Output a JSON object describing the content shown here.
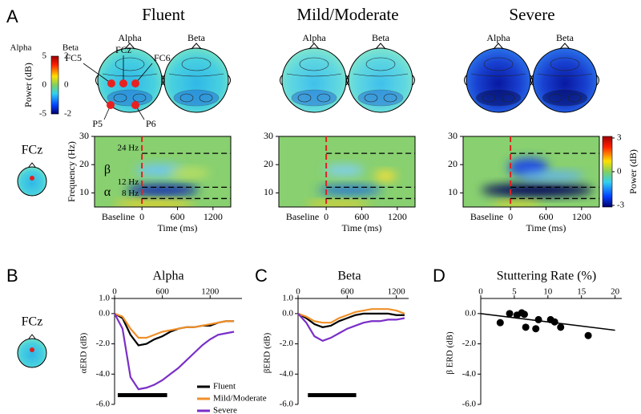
{
  "panel_a": {
    "label": "A",
    "groups": [
      {
        "title": "Fluent"
      },
      {
        "title": "Mild/Moderate"
      },
      {
        "title": "Severe"
      }
    ],
    "topo_titles": [
      "Alpha",
      "Beta"
    ],
    "electrodes": [
      "FC5",
      "FCz",
      "FC6",
      "P5",
      "P6"
    ],
    "topo_colorbar": {
      "titles": [
        "Alpha",
        "Beta"
      ],
      "label": "Power (dB)",
      "alpha_ticks": [
        5,
        0,
        -5
      ],
      "beta_ticks": [
        2,
        0,
        -2
      ]
    },
    "channel": "FCz",
    "spectrogram": {
      "ylabel": "Frequency (Hz)",
      "xlabel": "Time (ms)",
      "baseline_label": "Baseline",
      "ylim": [
        5,
        30
      ],
      "yticks": [
        10,
        20,
        30
      ],
      "xlim": [
        -800,
        1500
      ],
      "xticks": [
        0,
        600,
        1200
      ],
      "bands": [
        {
          "value": 24,
          "label": "24 Hz"
        },
        {
          "value": 12,
          "label": "12 Hz"
        },
        {
          "value": 8,
          "label": "8 Hz"
        }
      ],
      "band_names": [
        "β",
        "α"
      ]
    },
    "power_colorbar": {
      "label": "Power (dB)",
      "ticks": [
        3,
        0,
        -3
      ]
    }
  },
  "chart_data": [
    {
      "type": "line",
      "panel_label": "B",
      "title": "Alpha",
      "ylabel": "αERD (dB)",
      "legend": true,
      "x": [
        0,
        100,
        200,
        300,
        400,
        500,
        600,
        700,
        800,
        900,
        1000,
        1100,
        1200,
        1300,
        1400,
        1500
      ],
      "xlim": [
        0,
        1600
      ],
      "xticks": [
        0,
        600,
        1200
      ],
      "ylim": [
        -6,
        1
      ],
      "yticks": [
        {
          "value": 1,
          "label": "1.0"
        },
        {
          "value": 0,
          "label": "0.0"
        },
        {
          "value": -2,
          "label": "-2.0"
        },
        {
          "value": -4,
          "label": "-4.0"
        },
        {
          "value": -6,
          "label": "-6.0"
        }
      ],
      "significance": [
        40,
        660
      ],
      "series": [
        {
          "name": "Fluent",
          "color": "#000000",
          "values": [
            0,
            -0.3,
            -1.4,
            -2.1,
            -2.0,
            -1.7,
            -1.5,
            -1.2,
            -1.0,
            -0.9,
            -0.9,
            -0.8,
            -0.8,
            -0.6,
            -0.5,
            -0.5
          ]
        },
        {
          "name": "Mild/Moderate",
          "color": "#f0902a",
          "values": [
            0,
            -0.2,
            -1.0,
            -1.6,
            -1.6,
            -1.4,
            -1.2,
            -1.1,
            -1.0,
            -0.9,
            -0.9,
            -0.8,
            -0.7,
            -0.6,
            -0.5,
            -0.5
          ]
        },
        {
          "name": "Severe",
          "color": "#7a2fc8",
          "values": [
            0,
            -1.0,
            -4.2,
            -5.0,
            -4.9,
            -4.7,
            -4.4,
            -4.0,
            -3.6,
            -3.1,
            -2.6,
            -2.1,
            -1.7,
            -1.4,
            -1.3,
            -1.2
          ]
        }
      ]
    },
    {
      "type": "line",
      "panel_label": "C",
      "title": "Beta",
      "ylabel": "βERD (dB)",
      "legend": false,
      "x": [
        0,
        100,
        200,
        300,
        400,
        500,
        600,
        700,
        800,
        900,
        1000,
        1100,
        1200,
        1300
      ],
      "xlim": [
        0,
        1350
      ],
      "xticks": [
        0,
        600,
        1200
      ],
      "ylim": [
        -6,
        1
      ],
      "yticks": [
        {
          "value": 1,
          "label": "1.0"
        },
        {
          "value": 0,
          "label": "0.0"
        },
        {
          "value": -2,
          "label": "-2.0"
        },
        {
          "value": -4,
          "label": "-4.0"
        },
        {
          "value": -6,
          "label": "-6.0"
        }
      ],
      "significance": [
        120,
        710
      ],
      "series": [
        {
          "name": "Fluent",
          "color": "#000000",
          "values": [
            0,
            -0.3,
            -0.7,
            -0.9,
            -0.8,
            -0.5,
            -0.3,
            -0.1,
            0,
            0,
            0,
            0,
            -0.1,
            -0.1
          ]
        },
        {
          "name": "Mild/Moderate",
          "color": "#f0902a",
          "values": [
            0,
            -0.2,
            -0.5,
            -0.6,
            -0.6,
            -0.3,
            -0.1,
            0.1,
            0.2,
            0.3,
            0.3,
            0.3,
            0.2,
            0
          ]
        },
        {
          "name": "Severe",
          "color": "#7a2fc8",
          "values": [
            0,
            -0.6,
            -1.5,
            -1.8,
            -1.6,
            -1.3,
            -1.0,
            -0.8,
            -0.6,
            -0.5,
            -0.5,
            -0.4,
            -0.4,
            -0.3
          ]
        }
      ]
    },
    {
      "type": "scatter",
      "panel_label": "D",
      "title": "Stuttering Rate (%)",
      "ylabel": "β ERD (dB)",
      "x": [
        2.9,
        4.3,
        5.4,
        6.1,
        6.5,
        6.7,
        8.2,
        8.6,
        10.4,
        11.0,
        11.9,
        16.0
      ],
      "values": [
        -0.6,
        0.0,
        -0.1,
        0.05,
        -0.05,
        -0.9,
        -1.0,
        -0.4,
        -0.4,
        -0.55,
        -0.9,
        -1.45
      ],
      "color": "#000000",
      "xlim": [
        0,
        21
      ],
      "xticks": [
        0,
        5,
        10,
        15,
        20
      ],
      "ylim": [
        -6,
        1
      ],
      "yticks": [
        {
          "value": 0,
          "label": "0.0"
        },
        {
          "value": -2,
          "label": "-2.0"
        },
        {
          "value": -4,
          "label": "-4.0"
        },
        {
          "value": -6,
          "label": "-6.0"
        }
      ],
      "trendline": {
        "x": [
          0,
          20
        ],
        "y": [
          0,
          -1.1
        ]
      }
    }
  ]
}
